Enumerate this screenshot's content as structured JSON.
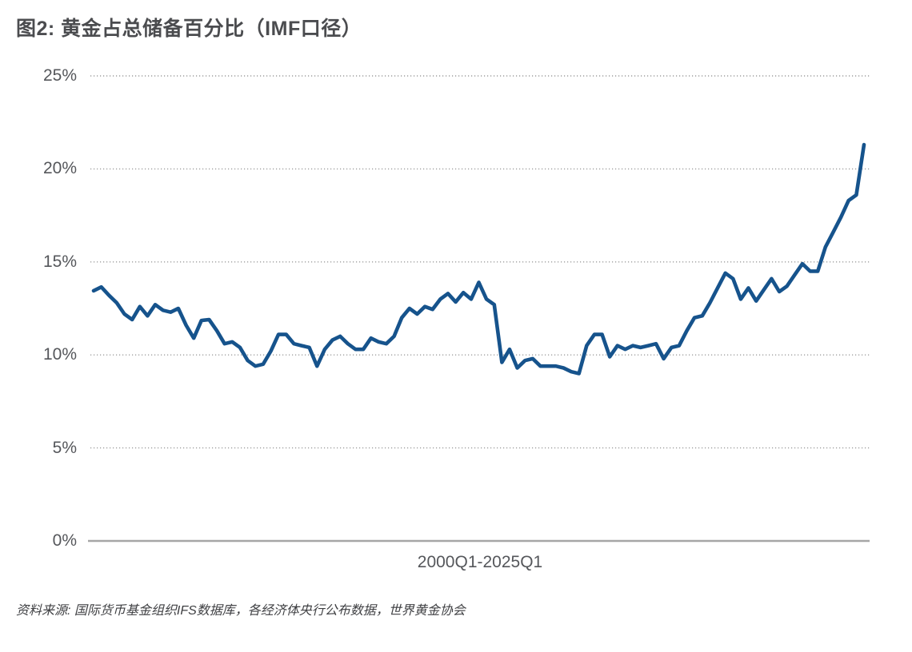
{
  "header": {
    "title": "图2: 黄金占总储备百分比（IMF口径）",
    "title_color": "#4b4c4f"
  },
  "footer": {
    "source": "资料来源: 国际货币基金组织IFS数据库，各经济体央行公布数据，世界黄金协会"
  },
  "chart_data": {
    "type": "line",
    "title": "图2: 黄金占总储备百分比（IMF口径）",
    "xlabel": "2000Q1-2025Q1",
    "ylabel": "",
    "ylim": [
      0,
      25
    ],
    "ytick_labels": [
      "25%",
      "20%",
      "15%",
      "10%",
      "5%",
      "0%"
    ],
    "grid": "horizontal-dotted",
    "legend": "none",
    "line_color": "#16538c",
    "x_axis": {
      "start": "2000Q1",
      "end": "2025Q1",
      "frequency": "quarterly",
      "points": 101
    },
    "series": [
      {
        "name": "黄金占总储备百分比",
        "unit": "%",
        "values": [
          13.45,
          13.65,
          13.2,
          12.8,
          12.2,
          11.9,
          12.6,
          12.1,
          12.7,
          12.4,
          12.3,
          12.5,
          11.6,
          10.9,
          11.85,
          11.9,
          11.3,
          10.6,
          10.7,
          10.4,
          9.7,
          9.4,
          9.5,
          10.2,
          11.1,
          11.1,
          10.6,
          10.5,
          10.4,
          9.4,
          10.3,
          10.8,
          11.0,
          10.6,
          10.3,
          10.3,
          10.9,
          10.7,
          10.6,
          11.0,
          12.0,
          12.5,
          12.2,
          12.6,
          12.45,
          13.0,
          13.3,
          12.85,
          13.35,
          13.0,
          13.9,
          13.0,
          12.7,
          9.6,
          10.3,
          9.3,
          9.7,
          9.8,
          9.4,
          9.4,
          9.4,
          9.3,
          9.1,
          9.0,
          10.5,
          11.1,
          11.1,
          9.9,
          10.5,
          10.3,
          10.5,
          10.4,
          10.5,
          10.6,
          9.8,
          10.4,
          10.5,
          11.3,
          12.0,
          12.1,
          12.8,
          13.6,
          14.4,
          14.1,
          13.0,
          13.6,
          12.9,
          13.5,
          14.1,
          13.4,
          13.7,
          14.3,
          14.9,
          14.5,
          14.5,
          15.8,
          16.6,
          17.4,
          18.3,
          18.6,
          21.3
        ]
      }
    ]
  }
}
